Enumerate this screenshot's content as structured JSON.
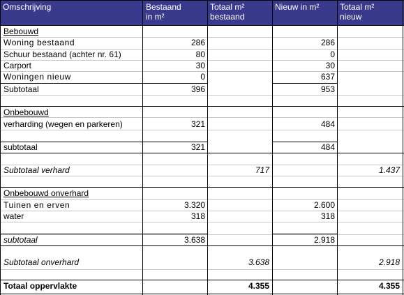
{
  "header": {
    "col1": "Omschrijving",
    "col2_line1": "Bestaand",
    "col2_line2": "in m²",
    "col3_line1": "Totaal m²",
    "col3_line2": "bestaand",
    "col4": "Nieuw in m²",
    "col5_line1": "Totaal m²",
    "col5_line2": "nieuw"
  },
  "sections": {
    "bebouwd": {
      "title": "Bebouwd",
      "rows": [
        {
          "label": "Woning bestaand",
          "bestaand": "286",
          "nieuw": "286"
        },
        {
          "label": "Schuur bestaand (achter nr. 61)",
          "bestaand": "80",
          "nieuw": "0"
        },
        {
          "label": "Carport",
          "bestaand": "30",
          "nieuw": "30"
        },
        {
          "label": "Woningen nieuw",
          "bestaand": "0",
          "nieuw": "637"
        }
      ],
      "subtotal": {
        "label": "Subtotaal",
        "bestaand": "396",
        "nieuw": "953"
      }
    },
    "onbebouwd": {
      "title": "Onbebouwd",
      "rows": [
        {
          "label": "verharding (wegen en parkeren)",
          "bestaand": "321",
          "nieuw": "484"
        }
      ],
      "subtotal": {
        "label": "subtotaal",
        "bestaand": "321",
        "nieuw": "484"
      }
    },
    "verhard_total": {
      "label": "Subtotaal verhard",
      "totaal_bestaand": "717",
      "totaal_nieuw": "1.437"
    },
    "onverhard": {
      "title": "Onbebouwd onverhard",
      "rows": [
        {
          "label": "Tuinen en erven",
          "bestaand": "3.320",
          "nieuw": "2.600"
        },
        {
          "label": "water",
          "bestaand": "318",
          "nieuw": "318"
        }
      ],
      "subtotal": {
        "label": "subtotaal",
        "bestaand": "3.638",
        "nieuw": "2.918"
      }
    },
    "onverhard_total": {
      "label": "Subtotaal onverhard",
      "totaal_bestaand": "3.638",
      "totaal_nieuw": "2.918"
    },
    "grand_total": {
      "label": "Totaal oppervlakte",
      "totaal_bestaand": "4.355",
      "totaal_nieuw": "4.355"
    }
  },
  "colors": {
    "header_bg": "#3a3a8c",
    "header_text": "#ffffff",
    "grid": "#c8c8c8"
  }
}
